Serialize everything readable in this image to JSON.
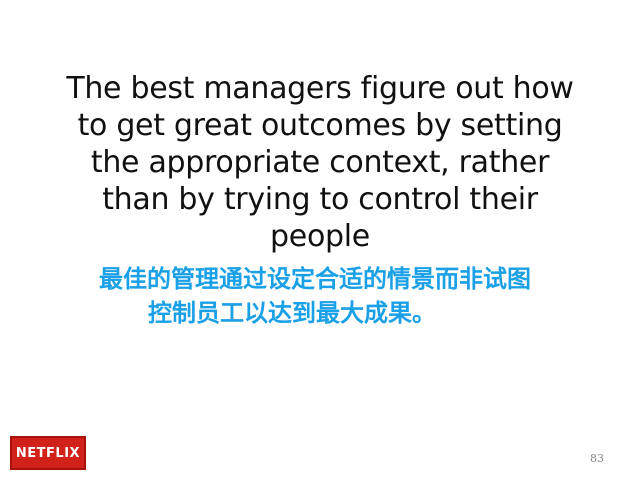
{
  "slide": {
    "quote_lines": [
      "The best managers figure out how",
      "to get great outcomes by setting",
      "the appropriate context, rather",
      "than by trying to control their",
      "people"
    ],
    "translation_lines": [
      "最佳的管理通过设定合适的情景而非试图",
      "控制员工以达到最大成果。"
    ],
    "logo_text": "NETFLIX",
    "page_number": "83"
  },
  "colors": {
    "background": "#ffffff",
    "quote_text": "#111111",
    "translation_text": "#1aa0e6",
    "logo_background": "#d0211b"
  }
}
